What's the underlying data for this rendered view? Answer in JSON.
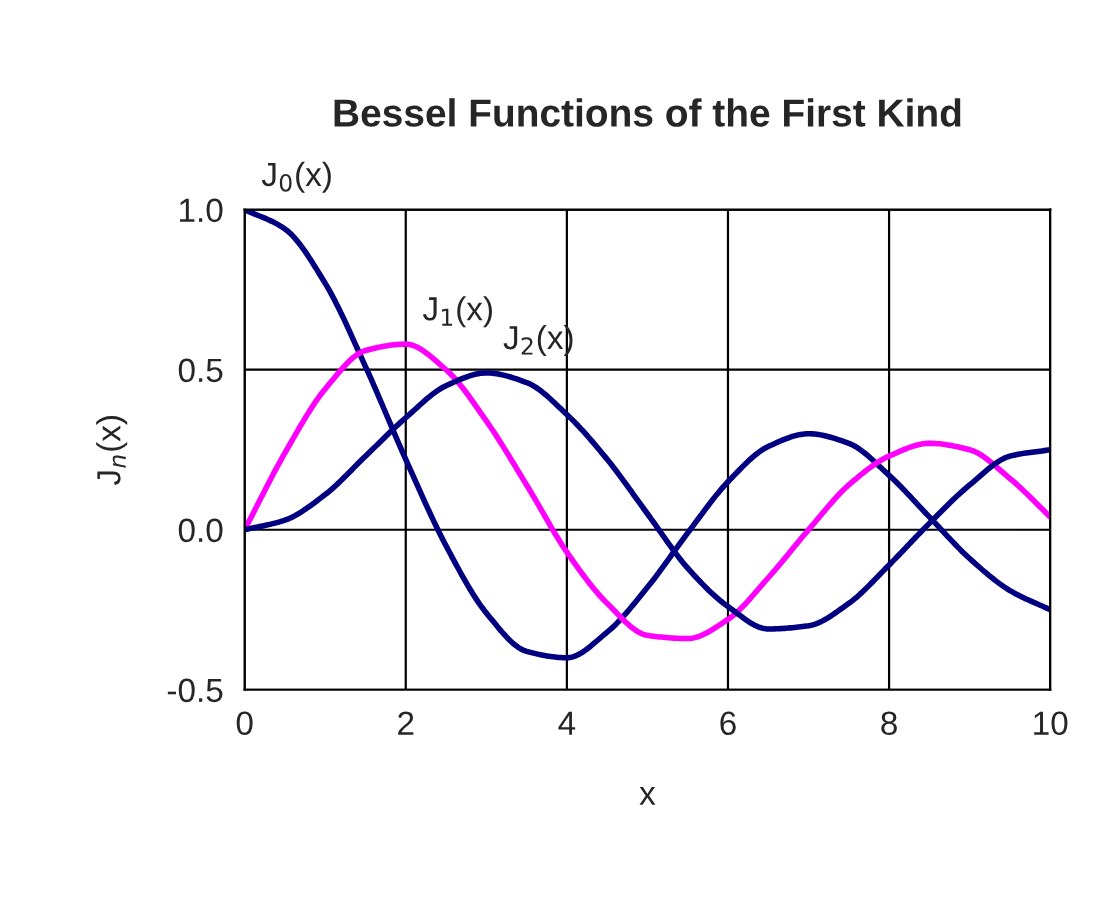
{
  "chart_data": {
    "type": "line",
    "title": "Bessel Functions of the First Kind",
    "xlabel": "x",
    "ylabel": "J$_{n}$(x)",
    "x": [
      0,
      0.5,
      1,
      1.5,
      2,
      2.5,
      3,
      3.5,
      4,
      4.5,
      5,
      5.5,
      6,
      6.5,
      7,
      7.5,
      8,
      8.5,
      9,
      9.5,
      10
    ],
    "series": [
      {
        "name": "J$_{0}$(x)",
        "color": "#000080",
        "values": [
          1.0,
          0.94,
          0.77,
          0.51,
          0.22,
          -0.05,
          -0.26,
          -0.38,
          -0.4,
          -0.32,
          -0.18,
          -0.01,
          0.15,
          0.26,
          0.3,
          0.27,
          0.17,
          0.04,
          -0.09,
          -0.19,
          -0.25
        ]
      },
      {
        "name": "J$_{1}$(x)",
        "color": "#ff00ff",
        "values": [
          0.0,
          0.24,
          0.44,
          0.56,
          0.58,
          0.5,
          0.34,
          0.14,
          -0.07,
          -0.23,
          -0.33,
          -0.34,
          -0.28,
          -0.15,
          0.0,
          0.14,
          0.23,
          0.27,
          0.25,
          0.16,
          0.04
        ]
      },
      {
        "name": "J$_{2}$(x)",
        "color": "#000080",
        "values": [
          0.0,
          0.03,
          0.11,
          0.23,
          0.35,
          0.45,
          0.49,
          0.46,
          0.36,
          0.22,
          0.05,
          -0.12,
          -0.24,
          -0.31,
          -0.3,
          -0.23,
          -0.11,
          0.02,
          0.14,
          0.23,
          0.25
        ]
      }
    ],
    "xlim": [
      0,
      10
    ],
    "xticks": [
      0,
      2,
      4,
      6,
      8,
      10
    ],
    "ylim": [
      -0.5,
      1.0
    ],
    "yticks": [
      {
        "value": -0.5,
        "label": "-0.5"
      },
      {
        "value": 0,
        "label": "0.0"
      },
      {
        "value": 0.5,
        "label": "0.5"
      },
      {
        "value": 1.0,
        "label": "1.0"
      }
    ],
    "grid": true,
    "legend": false,
    "marker": "none",
    "line_style": "solid"
  }
}
